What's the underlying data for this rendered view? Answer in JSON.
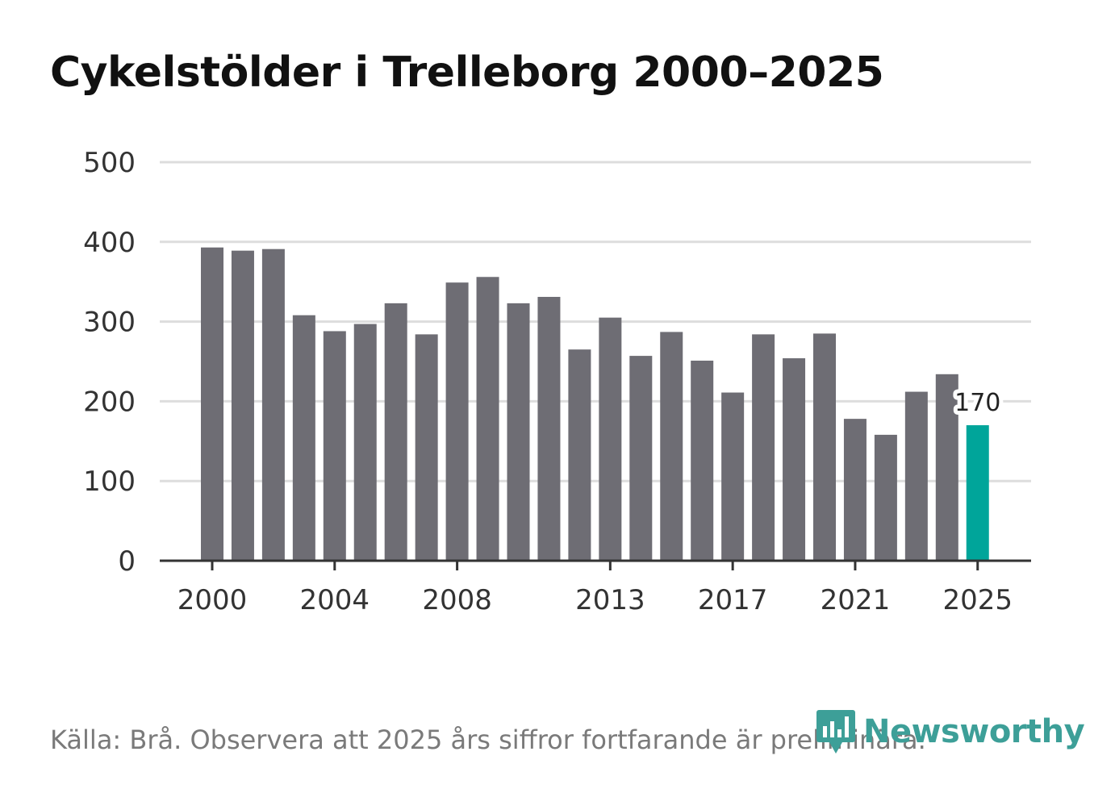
{
  "title": "Cykelstölder i Trelleborg 2000–2025",
  "source": "Källa: Brå. Observera att 2025 års siffror fortfarande är preliminära.",
  "brand": "Newsworthy",
  "colors": {
    "bar": "#6e6d74",
    "highlight": "#00a59a",
    "grid": "#dddddd",
    "axis": "#333333",
    "brand": "#3d9f98"
  },
  "chart_data": {
    "type": "bar",
    "title": "Cykelstölder i Trelleborg 2000–2025",
    "xlabel": "",
    "ylabel": "",
    "categories": [
      2000,
      2001,
      2002,
      2003,
      2004,
      2005,
      2006,
      2007,
      2008,
      2009,
      2010,
      2011,
      2012,
      2013,
      2014,
      2015,
      2016,
      2017,
      2018,
      2019,
      2020,
      2021,
      2022,
      2023,
      2024,
      2025
    ],
    "values": [
      393,
      389,
      391,
      308,
      288,
      297,
      323,
      284,
      349,
      356,
      323,
      331,
      265,
      305,
      257,
      287,
      251,
      211,
      284,
      254,
      285,
      178,
      158,
      212,
      234,
      170
    ],
    "highlight_category": 2025,
    "data_labels": [
      {
        "category": 2025,
        "text": "170"
      }
    ],
    "ylim": [
      0,
      500
    ],
    "yticks": [
      0,
      100,
      200,
      300,
      400,
      500
    ],
    "xticks": [
      2000,
      2004,
      2008,
      2013,
      2017,
      2021,
      2025
    ],
    "grid": true
  }
}
